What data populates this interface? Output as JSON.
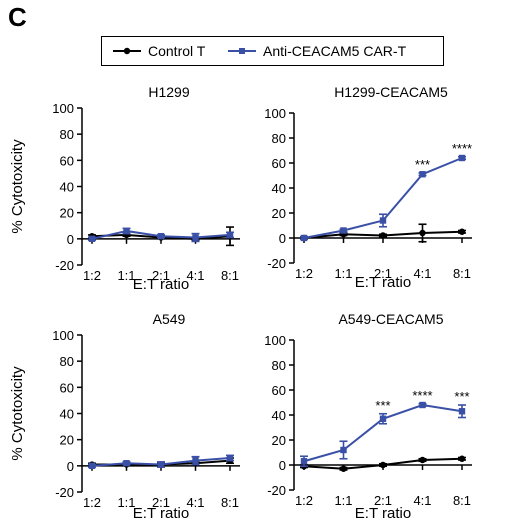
{
  "figure": {
    "panel_letter": "C",
    "legend": [
      {
        "label": "Control T",
        "color": "#000000"
      },
      {
        "label": "Anti-CEACAM5 CAR-T",
        "color": "#3a50a6"
      }
    ]
  },
  "chart_data": [
    {
      "type": "line",
      "title": "H1299",
      "xlabel": "E:T ratio",
      "ylabel": "% Cytotoxicity",
      "categories": [
        "1:2",
        "1:1",
        "2:1",
        "4:1",
        "8:1"
      ],
      "ylim": [
        -20,
        100
      ],
      "yticks": [
        -20,
        0,
        20,
        40,
        60,
        80,
        100
      ],
      "series": [
        {
          "name": "Control T",
          "color": "#000000",
          "values": [
            2,
            3,
            1,
            0,
            2
          ],
          "errors": [
            1,
            1,
            1,
            1,
            7
          ]
        },
        {
          "name": "Anti-CEACAM5 CAR-T",
          "color": "#3a50a6",
          "values": [
            0,
            6,
            2,
            1,
            3
          ],
          "errors": [
            1,
            2,
            1,
            3,
            2
          ]
        }
      ],
      "significance": [
        "",
        "",
        "",
        "",
        ""
      ]
    },
    {
      "type": "line",
      "title": "H1299-CEACAM5",
      "xlabel": "E:T ratio",
      "ylabel": "",
      "categories": [
        "1:2",
        "1:1",
        "2:1",
        "4:1",
        "8:1"
      ],
      "ylim": [
        -20,
        100
      ],
      "yticks": [
        -20,
        0,
        20,
        40,
        60,
        80,
        100
      ],
      "series": [
        {
          "name": "Control T",
          "color": "#000000",
          "values": [
            0,
            3,
            2,
            4,
            5
          ],
          "errors": [
            1,
            1,
            1,
            7,
            1
          ]
        },
        {
          "name": "Anti-CEACAM5 CAR-T",
          "color": "#3a50a6",
          "values": [
            0,
            6,
            14,
            51,
            64
          ],
          "errors": [
            1,
            1,
            5,
            1,
            1
          ]
        }
      ],
      "significance": [
        "",
        "",
        "",
        "***",
        "****"
      ]
    },
    {
      "type": "line",
      "title": "A549",
      "xlabel": "E:T ratio",
      "ylabel": "% Cytotoxicity",
      "categories": [
        "1:2",
        "1:1",
        "2:1",
        "4:1",
        "8:1"
      ],
      "ylim": [
        -20,
        100
      ],
      "yticks": [
        -20,
        0,
        20,
        40,
        60,
        80,
        100
      ],
      "series": [
        {
          "name": "Control T",
          "color": "#000000",
          "values": [
            1,
            1,
            1,
            2,
            4
          ],
          "errors": [
            1,
            1,
            1,
            1,
            2
          ]
        },
        {
          "name": "Anti-CEACAM5 CAR-T",
          "color": "#3a50a6",
          "values": [
            0,
            2,
            1,
            4,
            6
          ],
          "errors": [
            1,
            1,
            2,
            3,
            2
          ]
        }
      ],
      "significance": [
        "",
        "",
        "",
        "",
        ""
      ]
    },
    {
      "type": "line",
      "title": "A549-CEACAM5",
      "xlabel": "E:T ratio",
      "ylabel": "",
      "categories": [
        "1:2",
        "1:1",
        "2:1",
        "4:1",
        "8:1"
      ],
      "ylim": [
        -20,
        100
      ],
      "yticks": [
        -20,
        0,
        20,
        40,
        60,
        80,
        100
      ],
      "series": [
        {
          "name": "Control T",
          "color": "#000000",
          "values": [
            -1,
            -3,
            0,
            4,
            5
          ],
          "errors": [
            1,
            1,
            1,
            1,
            1
          ]
        },
        {
          "name": "Anti-CEACAM5 CAR-T",
          "color": "#3a50a6",
          "values": [
            3,
            12,
            37,
            48,
            43
          ],
          "errors": [
            4,
            7,
            4,
            1,
            5
          ]
        }
      ],
      "significance": [
        "",
        "",
        "***",
        "****",
        "***"
      ]
    }
  ]
}
